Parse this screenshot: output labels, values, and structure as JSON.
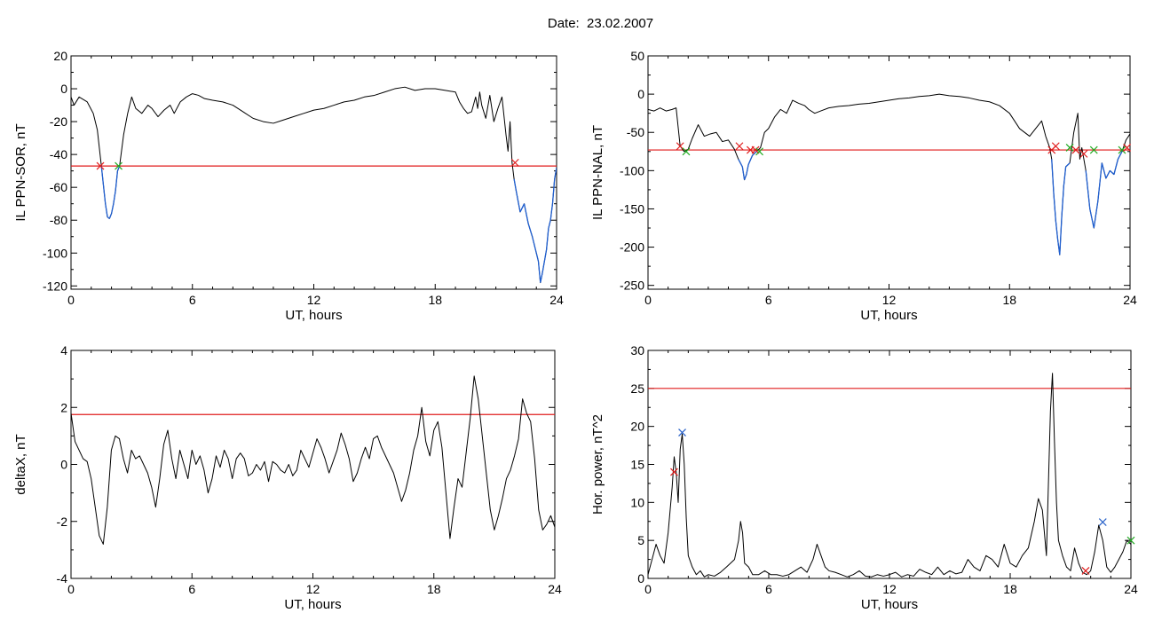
{
  "page": {
    "title": "Date:  23.02.2007"
  },
  "colors": {
    "trace": "#000000",
    "below_threshold": "#1f5fd1",
    "threshold": "#e01b1b",
    "marker_start": "#e01b1b",
    "marker_end": "#22aa22",
    "marker_peak": "#2a62c9"
  },
  "chart_data": [
    {
      "id": "sor",
      "type": "line",
      "ylabel": "IL PPN-SOR, nT",
      "xlabel": "UT, hours",
      "xlim": [
        0,
        24
      ],
      "ylim": [
        -122,
        20
      ],
      "xticks": [
        0,
        6,
        12,
        18,
        24
      ],
      "xtick_labels": [
        "0",
        "6",
        "12",
        "18",
        "24"
      ],
      "yticks": [
        -120,
        -100,
        -80,
        -60,
        -40,
        -20,
        0,
        20
      ],
      "ytick_labels": [
        "-120",
        "-100",
        "-80",
        "-60",
        "-40",
        "-20",
        "0",
        "20"
      ],
      "threshold": -47,
      "series": [
        {
          "x": [
            0,
            0.15,
            0.4,
            0.8,
            1.1,
            1.3,
            1.5,
            1.7,
            1.8,
            1.9,
            2.0,
            2.1,
            2.2,
            2.3,
            2.4,
            2.6,
            2.8,
            3.0,
            3.2,
            3.5,
            3.8,
            4.0,
            4.3,
            4.6,
            4.9,
            5.1,
            5.4,
            5.7,
            6.0,
            6.3,
            6.6,
            7.0,
            7.5,
            8.0,
            8.5,
            9.0,
            9.5,
            10.0,
            10.5,
            11.0,
            11.5,
            12.0,
            12.5,
            13.0,
            13.5,
            14.0,
            14.5,
            15.0,
            15.5,
            16.0,
            16.5,
            17.0,
            17.5,
            18.0,
            18.5,
            19.0,
            19.2,
            19.4,
            19.6,
            19.8,
            20.0,
            20.1,
            20.2,
            20.3,
            20.5,
            20.7,
            20.9,
            21.1,
            21.3,
            21.5,
            21.6,
            21.7,
            21.8,
            21.9,
            22.0,
            22.2,
            22.4,
            22.6,
            22.8,
            23.0,
            23.1,
            23.2,
            23.3,
            23.5,
            23.6,
            23.7,
            23.8,
            23.9,
            24.0
          ],
          "y": [
            -5,
            -10,
            -5,
            -8,
            -15,
            -25,
            -47,
            -70,
            -78,
            -79,
            -76,
            -70,
            -62,
            -50,
            -47,
            -28,
            -15,
            -5,
            -12,
            -15,
            -10,
            -12,
            -17,
            -13,
            -10,
            -15,
            -8,
            -5,
            -3,
            -4,
            -6,
            -7,
            -8,
            -10,
            -14,
            -18,
            -20,
            -21,
            -19,
            -17,
            -15,
            -13,
            -12,
            -10,
            -8,
            -7,
            -5,
            -4,
            -2,
            0,
            1,
            -1,
            0,
            0,
            -1,
            -2,
            -8,
            -12,
            -15,
            -14,
            -5,
            -12,
            -2,
            -10,
            -18,
            -4,
            -20,
            -12,
            -5,
            -28,
            -38,
            -20,
            -45,
            -55,
            -62,
            -75,
            -70,
            -82,
            -90,
            -100,
            -105,
            -118,
            -112,
            -98,
            -85,
            -80,
            -70,
            -55,
            -48
          ]
        }
      ],
      "markers": [
        {
          "x": 1.45,
          "y": -47,
          "color": "marker_start"
        },
        {
          "x": 2.35,
          "y": -47,
          "color": "marker_end"
        },
        {
          "x": 21.95,
          "y": -45,
          "color": "marker_start"
        }
      ]
    },
    {
      "id": "nal",
      "type": "line",
      "ylabel": "IL PPN-NAL, nT",
      "xlabel": "UT, hours",
      "xlim": [
        0,
        24
      ],
      "ylim": [
        -255,
        50
      ],
      "xticks": [
        0,
        6,
        12,
        18,
        24
      ],
      "xtick_labels": [
        "0",
        "6",
        "12",
        "18",
        "24"
      ],
      "yticks": [
        -250,
        -200,
        -150,
        -100,
        -50,
        0,
        50
      ],
      "ytick_labels": [
        "-250",
        "-200",
        "-150",
        "-100",
        "-50",
        "0",
        "50"
      ],
      "threshold": -73,
      "series": [
        {
          "x": [
            0,
            0.3,
            0.6,
            0.9,
            1.2,
            1.4,
            1.6,
            1.8,
            2.0,
            2.2,
            2.5,
            2.8,
            3.1,
            3.4,
            3.7,
            4.0,
            4.3,
            4.5,
            4.7,
            4.8,
            4.9,
            5.0,
            5.2,
            5.4,
            5.6,
            5.8,
            6.0,
            6.3,
            6.6,
            6.9,
            7.2,
            7.5,
            7.8,
            8.0,
            8.3,
            8.6,
            9.0,
            9.5,
            10.0,
            10.5,
            11.0,
            11.5,
            12.0,
            12.5,
            13.0,
            13.5,
            14.0,
            14.5,
            15.0,
            15.5,
            16.0,
            16.5,
            17.0,
            17.5,
            18.0,
            18.5,
            19.0,
            19.3,
            19.6,
            19.8,
            20.0,
            20.1,
            20.2,
            20.3,
            20.4,
            20.5,
            20.6,
            20.7,
            20.8,
            21.0,
            21.2,
            21.4,
            21.5,
            21.6,
            21.8,
            22.0,
            22.2,
            22.4,
            22.6,
            22.8,
            23.0,
            23.2,
            23.4,
            23.6,
            23.8,
            24.0
          ],
          "y": [
            -20,
            -22,
            -18,
            -22,
            -20,
            -18,
            -68,
            -75,
            -72,
            -58,
            -40,
            -55,
            -52,
            -50,
            -62,
            -60,
            -72,
            -85,
            -95,
            -112,
            -105,
            -92,
            -80,
            -75,
            -70,
            -50,
            -45,
            -30,
            -20,
            -25,
            -8,
            -12,
            -15,
            -20,
            -25,
            -22,
            -18,
            -16,
            -15,
            -13,
            -12,
            -10,
            -8,
            -6,
            -5,
            -3,
            -2,
            0,
            -2,
            -3,
            -5,
            -8,
            -10,
            -15,
            -25,
            -45,
            -55,
            -45,
            -35,
            -55,
            -70,
            -85,
            -130,
            -165,
            -190,
            -210,
            -160,
            -120,
            -95,
            -90,
            -50,
            -25,
            -85,
            -70,
            -100,
            -150,
            -175,
            -140,
            -90,
            -110,
            -100,
            -105,
            -85,
            -75,
            -60,
            -52
          ]
        }
      ],
      "markers": [
        {
          "x": 1.6,
          "y": -68,
          "color": "marker_start"
        },
        {
          "x": 1.9,
          "y": -75,
          "color": "marker_end"
        },
        {
          "x": 4.55,
          "y": -68,
          "color": "marker_start"
        },
        {
          "x": 5.1,
          "y": -73,
          "color": "marker_start"
        },
        {
          "x": 5.35,
          "y": -73,
          "color": "marker_start"
        },
        {
          "x": 5.55,
          "y": -75,
          "color": "marker_end"
        },
        {
          "x": 20.1,
          "y": -73,
          "color": "marker_start"
        },
        {
          "x": 20.3,
          "y": -68,
          "color": "marker_start"
        },
        {
          "x": 21.0,
          "y": -70,
          "color": "marker_end"
        },
        {
          "x": 21.3,
          "y": -73,
          "color": "marker_start"
        },
        {
          "x": 21.7,
          "y": -78,
          "color": "marker_start"
        },
        {
          "x": 22.2,
          "y": -73,
          "color": "marker_end"
        },
        {
          "x": 23.6,
          "y": -73,
          "color": "marker_end"
        },
        {
          "x": 23.85,
          "y": -70,
          "color": "marker_start"
        }
      ]
    },
    {
      "id": "deltax",
      "type": "line",
      "ylabel": "deltaX, nT",
      "xlabel": "UT, hours",
      "xlim": [
        0,
        24
      ],
      "ylim": [
        -4,
        4
      ],
      "xticks": [
        0,
        6,
        12,
        18,
        24
      ],
      "xtick_labels": [
        "0",
        "6",
        "12",
        "18",
        "24"
      ],
      "yticks": [
        -4,
        -2,
        0,
        2,
        4
      ],
      "ytick_labels": [
        "-4",
        "-2",
        "0",
        "2",
        "4"
      ],
      "threshold": 1.75,
      "series": [
        {
          "x": [
            0,
            0.2,
            0.4,
            0.6,
            0.8,
            1.0,
            1.2,
            1.4,
            1.6,
            1.8,
            2.0,
            2.2,
            2.4,
            2.6,
            2.8,
            3.0,
            3.2,
            3.4,
            3.6,
            3.8,
            4.0,
            4.2,
            4.4,
            4.6,
            4.8,
            5.0,
            5.2,
            5.4,
            5.6,
            5.8,
            6.0,
            6.2,
            6.4,
            6.6,
            6.8,
            7.0,
            7.2,
            7.4,
            7.6,
            7.8,
            8.0,
            8.2,
            8.4,
            8.6,
            8.8,
            9.0,
            9.2,
            9.4,
            9.6,
            9.8,
            10.0,
            10.2,
            10.4,
            10.6,
            10.8,
            11.0,
            11.2,
            11.4,
            11.6,
            11.8,
            12.0,
            12.2,
            12.4,
            12.6,
            12.8,
            13.0,
            13.2,
            13.4,
            13.6,
            13.8,
            14.0,
            14.2,
            14.4,
            14.6,
            14.8,
            15.0,
            15.2,
            15.4,
            15.6,
            15.8,
            16.0,
            16.2,
            16.4,
            16.6,
            16.8,
            17.0,
            17.2,
            17.4,
            17.6,
            17.8,
            18.0,
            18.2,
            18.4,
            18.6,
            18.8,
            19.0,
            19.2,
            19.4,
            19.6,
            19.8,
            20.0,
            20.2,
            20.4,
            20.6,
            20.8,
            21.0,
            21.2,
            21.4,
            21.6,
            21.8,
            22.0,
            22.2,
            22.4,
            22.6,
            22.8,
            23.0,
            23.2,
            23.4,
            23.6,
            23.8,
            24.0
          ],
          "y": [
            1.8,
            0.8,
            0.5,
            0.2,
            0.1,
            -0.5,
            -1.5,
            -2.5,
            -2.8,
            -1.5,
            0.5,
            1.0,
            0.9,
            0.2,
            -0.3,
            0.5,
            0.2,
            0.3,
            0,
            -0.3,
            -0.8,
            -1.5,
            -0.5,
            0.7,
            1.2,
            0.2,
            -0.5,
            0.5,
            0,
            -0.5,
            0.5,
            0,
            0.3,
            -0.2,
            -1.0,
            -0.5,
            0.3,
            -0.1,
            0.5,
            0.2,
            -0.5,
            0.2,
            0.4,
            0.2,
            -0.4,
            -0.3,
            0,
            -0.2,
            0.1,
            -0.6,
            0.1,
            0,
            -0.2,
            -0.3,
            0,
            -0.4,
            -0.2,
            0.5,
            0.2,
            -0.1,
            0.4,
            0.9,
            0.6,
            0.2,
            -0.3,
            0.1,
            0.5,
            1.1,
            0.7,
            0.2,
            -0.6,
            -0.3,
            0.2,
            0.6,
            0.2,
            0.9,
            1.0,
            0.6,
            0.3,
            0,
            -0.3,
            -0.8,
            -1.3,
            -0.9,
            -0.3,
            0.5,
            1.0,
            2.0,
            0.8,
            0.3,
            1.2,
            1.5,
            0.6,
            -1.0,
            -2.6,
            -1.5,
            -0.5,
            -0.8,
            0.4,
            1.6,
            3.1,
            2.3,
            1.0,
            -0.3,
            -1.6,
            -2.3,
            -1.8,
            -1.2,
            -0.5,
            -0.2,
            0.3,
            0.9,
            2.3,
            1.8,
            1.5,
            0.2,
            -1.6,
            -2.3,
            -2.1,
            -1.8,
            -2.2
          ]
        }
      ],
      "markers": []
    },
    {
      "id": "power",
      "type": "line",
      "ylabel": "Hor. power, nT^2",
      "xlabel": "UT, hours",
      "xlim": [
        0,
        24
      ],
      "ylim": [
        0,
        30
      ],
      "xticks": [
        0,
        6,
        12,
        18,
        24
      ],
      "xtick_labels": [
        "0",
        "6",
        "12",
        "18",
        "24"
      ],
      "yticks": [
        0,
        5,
        10,
        15,
        20,
        25,
        30
      ],
      "ytick_labels": [
        "0",
        "5",
        "10",
        "15",
        "20",
        "25",
        "30"
      ],
      "threshold": 25,
      "series": [
        {
          "x": [
            0,
            0.2,
            0.4,
            0.6,
            0.8,
            1.0,
            1.2,
            1.3,
            1.4,
            1.5,
            1.6,
            1.7,
            1.8,
            1.9,
            2.0,
            2.2,
            2.4,
            2.6,
            2.8,
            3.0,
            3.3,
            3.6,
            3.9,
            4.1,
            4.3,
            4.5,
            4.6,
            4.7,
            4.8,
            5.0,
            5.2,
            5.5,
            5.8,
            6.1,
            6.4,
            6.7,
            7.0,
            7.3,
            7.6,
            7.9,
            8.2,
            8.4,
            8.6,
            8.8,
            9.0,
            9.3,
            9.6,
            9.9,
            10.2,
            10.5,
            10.8,
            11.1,
            11.4,
            11.7,
            12.0,
            12.3,
            12.6,
            12.9,
            13.2,
            13.5,
            13.8,
            14.1,
            14.4,
            14.7,
            15.0,
            15.3,
            15.6,
            15.9,
            16.2,
            16.5,
            16.8,
            17.1,
            17.4,
            17.7,
            18.0,
            18.3,
            18.6,
            18.9,
            19.2,
            19.4,
            19.6,
            19.8,
            20.0,
            20.1,
            20.2,
            20.3,
            20.4,
            20.6,
            20.8,
            21.0,
            21.2,
            21.4,
            21.6,
            21.8,
            22.0,
            22.2,
            22.4,
            22.6,
            22.8,
            23.0,
            23.2,
            23.4,
            23.6,
            23.8,
            24.0
          ],
          "y": [
            0.5,
            2.5,
            4.5,
            3.0,
            2.0,
            6.0,
            12.0,
            16.0,
            14.0,
            10.0,
            17.0,
            19.0,
            15.0,
            8.0,
            3.0,
            1.5,
            0.5,
            1.0,
            0.2,
            0.5,
            0.3,
            0.8,
            1.5,
            2.0,
            2.5,
            5.0,
            7.5,
            6.0,
            2.0,
            1.5,
            0.5,
            0.5,
            1.0,
            0.5,
            0.5,
            0.3,
            0.5,
            1.0,
            1.5,
            0.8,
            2.5,
            4.5,
            3.0,
            1.5,
            1.0,
            0.8,
            0.5,
            0.2,
            0.5,
            1.0,
            0.3,
            0.2,
            0.5,
            0.3,
            0.5,
            0.8,
            0.2,
            0.5,
            0.3,
            1.2,
            0.8,
            0.5,
            1.5,
            0.5,
            1.0,
            0.6,
            0.8,
            2.5,
            1.5,
            1.0,
            3.0,
            2.5,
            1.5,
            4.5,
            2.0,
            1.5,
            3.0,
            4.0,
            7.5,
            10.5,
            9.0,
            3.0,
            22.0,
            27.0,
            18.0,
            10.0,
            5.0,
            3.0,
            1.5,
            1.0,
            4.0,
            2.0,
            0.8,
            0.5,
            1.0,
            3.5,
            7.0,
            5.0,
            1.5,
            0.8,
            1.5,
            2.5,
            3.5,
            5.0,
            4.5
          ]
        }
      ],
      "markers": [
        {
          "x": 1.3,
          "y": 14.0,
          "color": "marker_start"
        },
        {
          "x": 1.7,
          "y": 19.2,
          "color": "marker_peak"
        },
        {
          "x": 21.75,
          "y": 1.0,
          "color": "marker_start"
        },
        {
          "x": 22.6,
          "y": 7.4,
          "color": "marker_peak"
        },
        {
          "x": 24.0,
          "y": 5.0,
          "color": "marker_end"
        }
      ]
    }
  ]
}
